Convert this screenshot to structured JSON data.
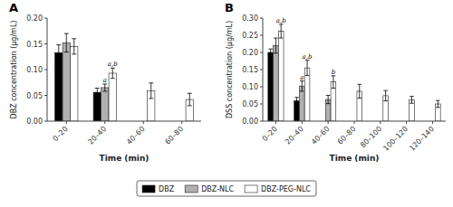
{
  "chart_data": [
    {
      "type": "bar",
      "title": "A",
      "x_label": "Time (min)",
      "y_label": "DBZ concentration (µg/mL)",
      "categories": [
        "0–20",
        "20–40",
        "40–60",
        "60–80"
      ],
      "series": [
        {
          "name": "DBZ",
          "color": "#000000",
          "values": [
            0.133,
            0.056,
            null,
            null
          ],
          "errors": [
            0.015,
            0.008,
            null,
            null
          ]
        },
        {
          "name": "DBZ-NLC",
          "color": "#b0b0b0",
          "values": [
            0.152,
            0.065,
            null,
            null
          ],
          "errors": [
            0.018,
            0.007,
            null,
            null
          ]
        },
        {
          "name": "DBZ-PEG-NLC",
          "color": "#ffffff",
          "values": [
            0.145,
            0.093,
            0.059,
            0.042
          ],
          "errors": [
            0.015,
            0.01,
            0.015,
            0.012
          ]
        }
      ],
      "ylim": [
        0,
        0.2
      ],
      "yticks": [
        {
          "value": 0,
          "label": "0.00"
        },
        {
          "value": 0.05,
          "label": "0.05"
        },
        {
          "value": 0.1,
          "label": "0.10"
        },
        {
          "value": 0.15,
          "label": "0.15"
        },
        {
          "value": 0.2,
          "label": "0.20"
        }
      ],
      "annotations": [
        {
          "text": "a",
          "category": "20–40",
          "series": "DBZ-NLC"
        },
        {
          "text": "a,b",
          "category": "20–40",
          "series": "DBZ-PEG-NLC"
        }
      ],
      "legend": "bottom"
    },
    {
      "type": "bar",
      "title": "B",
      "x_label": "Time (min)",
      "y_label": "DSS concentration (µg/mL)",
      "categories": [
        "0–20",
        "20–40",
        "40–60",
        "60–80",
        "80–100",
        "100–120",
        "120–140"
      ],
      "series": [
        {
          "name": "DBZ",
          "color": "#000000",
          "values": [
            0.2,
            0.059,
            null,
            null,
            null,
            null,
            null
          ],
          "errors": [
            0.01,
            0.01,
            null,
            null,
            null,
            null,
            null
          ]
        },
        {
          "name": "DBZ-NLC",
          "color": "#b0b0b0",
          "values": [
            0.22,
            0.102,
            0.063,
            null,
            null,
            null,
            null
          ],
          "errors": [
            0.022,
            0.015,
            0.012,
            null,
            null,
            null,
            null
          ]
        },
        {
          "name": "DBZ-PEG-NLC",
          "color": "#ffffff",
          "values": [
            0.262,
            0.155,
            0.114,
            0.087,
            0.074,
            0.062,
            0.05
          ],
          "errors": [
            0.02,
            0.022,
            0.018,
            0.02,
            0.015,
            0.01,
            0.01
          ]
        }
      ],
      "ylim": [
        0,
        0.3
      ],
      "yticks": [
        {
          "value": 0,
          "label": "0.00"
        },
        {
          "value": 0.05,
          "label": "0.05"
        },
        {
          "value": 0.1,
          "label": "0.10"
        },
        {
          "value": 0.15,
          "label": "0.15"
        },
        {
          "value": 0.2,
          "label": "0.20"
        },
        {
          "value": 0.25,
          "label": "0.25"
        },
        {
          "value": 0.3,
          "label": "0.30"
        }
      ],
      "annotations": [
        {
          "text": "a,b",
          "category": "0–20",
          "series": "DBZ-PEG-NLC"
        },
        {
          "text": "a",
          "category": "20–40",
          "series": "DBZ-NLC"
        },
        {
          "text": "a,b",
          "category": "20–40",
          "series": "DBZ-PEG-NLC"
        },
        {
          "text": "b",
          "category": "40–60",
          "series": "DBZ-PEG-NLC"
        }
      ]
    }
  ]
}
